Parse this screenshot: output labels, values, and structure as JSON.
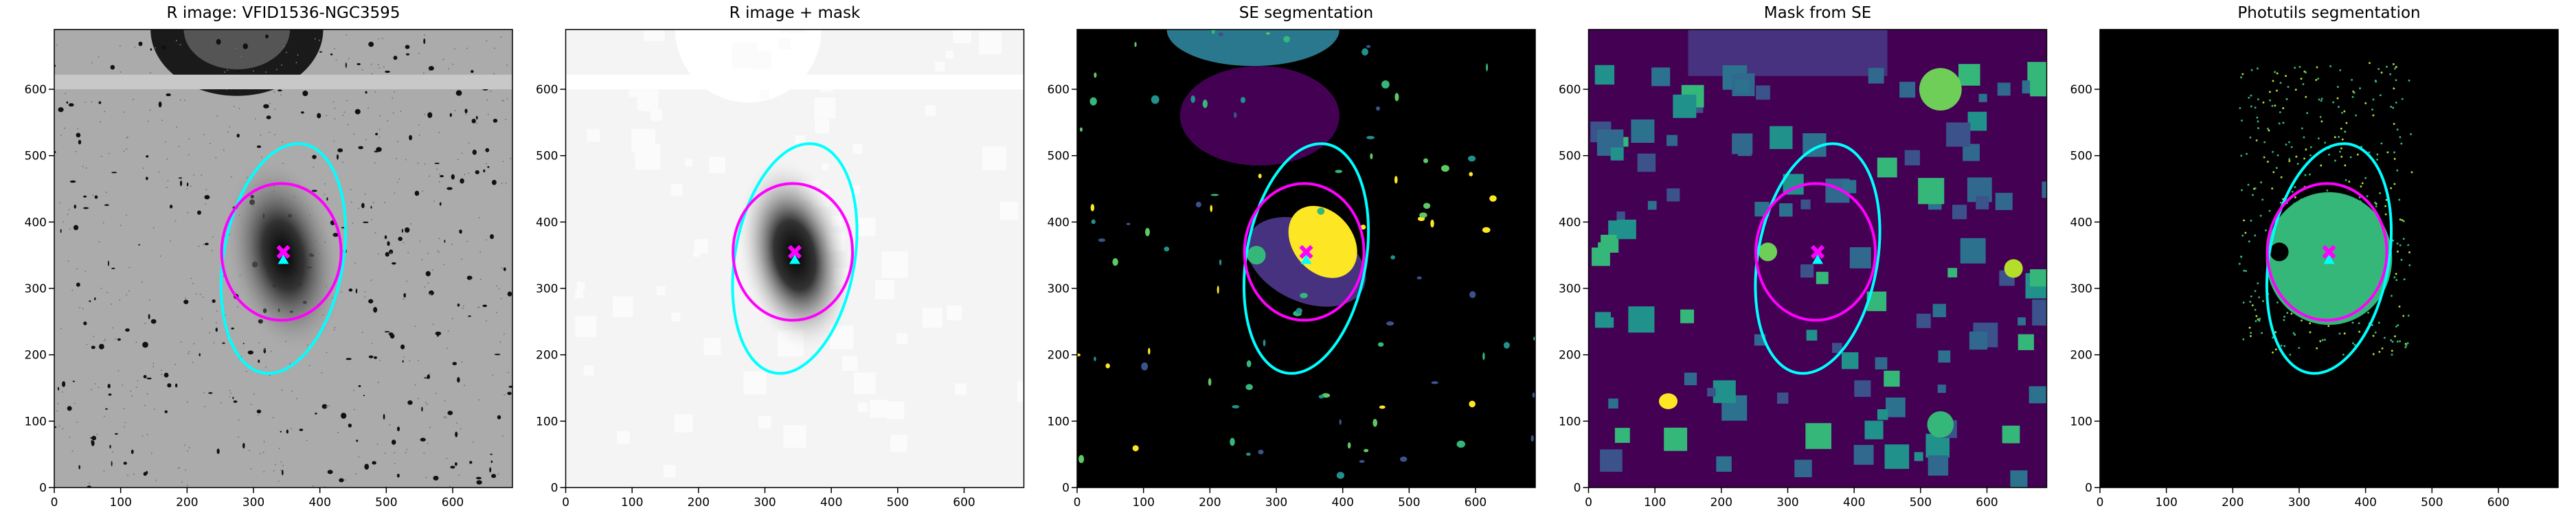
{
  "chart_data": [
    {
      "type": "image",
      "title": "R image: VFID1536-NGC3595",
      "background": "#ababab",
      "xlim": [
        0,
        690
      ],
      "ylim": [
        0,
        690
      ],
      "xticks": [
        0,
        100,
        200,
        300,
        400,
        500,
        600
      ],
      "yticks": [
        0,
        100,
        200,
        300,
        400,
        500,
        600
      ],
      "ellipses": [
        {
          "color": "#00ffff",
          "cx": 345,
          "cy": 345,
          "a": 175,
          "b": 90,
          "theta": 80
        },
        {
          "color": "#ff00ff",
          "cx": 342,
          "cy": 355,
          "a": 103,
          "b": 90,
          "theta": 90
        }
      ],
      "markers": [
        {
          "color": "#00ffff",
          "marker": "^",
          "x": 345,
          "y": 343
        },
        {
          "color": "#ff00ff",
          "marker": "x",
          "x": 345,
          "y": 355
        }
      ]
    },
    {
      "type": "image",
      "title": "R image + mask",
      "background": "#f4f4f4",
      "xlim": [
        0,
        690
      ],
      "ylim": [
        0,
        690
      ],
      "xticks": [
        0,
        100,
        200,
        300,
        400,
        500,
        600
      ],
      "yticks": [
        0,
        100,
        200,
        300,
        400,
        500,
        600
      ],
      "ellipses": [
        {
          "color": "#00ffff",
          "cx": 345,
          "cy": 345,
          "a": 175,
          "b": 90,
          "theta": 80
        },
        {
          "color": "#ff00ff",
          "cx": 342,
          "cy": 355,
          "a": 103,
          "b": 90,
          "theta": 90
        }
      ],
      "markers": [
        {
          "color": "#00ffff",
          "marker": "^",
          "x": 345,
          "y": 343
        },
        {
          "color": "#ff00ff",
          "marker": "x",
          "x": 345,
          "y": 355
        }
      ]
    },
    {
      "type": "image",
      "title": "SE segmentation",
      "background": "#000000",
      "xlim": [
        0,
        690
      ],
      "ylim": [
        0,
        690
      ],
      "xticks": [
        0,
        100,
        200,
        300,
        400,
        500,
        600
      ],
      "yticks": [
        0,
        100,
        200,
        300,
        400,
        500,
        600
      ],
      "ellipses": [
        {
          "color": "#00ffff",
          "cx": 345,
          "cy": 345,
          "a": 175,
          "b": 90,
          "theta": 80
        },
        {
          "color": "#ff00ff",
          "cx": 342,
          "cy": 355,
          "a": 103,
          "b": 90,
          "theta": 90
        }
      ],
      "markers": [
        {
          "color": "#00ffff",
          "marker": "^",
          "x": 345,
          "y": 343
        },
        {
          "color": "#ff00ff",
          "marker": "x",
          "x": 345,
          "y": 355
        }
      ]
    },
    {
      "type": "image",
      "title": "Mask from SE",
      "background": "#440154",
      "xlim": [
        0,
        690
      ],
      "ylim": [
        0,
        690
      ],
      "xticks": [
        0,
        100,
        200,
        300,
        400,
        500,
        600
      ],
      "yticks": [
        0,
        100,
        200,
        300,
        400,
        500,
        600
      ],
      "ellipses": [
        {
          "color": "#00ffff",
          "cx": 345,
          "cy": 345,
          "a": 175,
          "b": 90,
          "theta": 80
        },
        {
          "color": "#ff00ff",
          "cx": 342,
          "cy": 355,
          "a": 103,
          "b": 90,
          "theta": 90
        }
      ],
      "markers": [
        {
          "color": "#00ffff",
          "marker": "^",
          "x": 345,
          "y": 343
        },
        {
          "color": "#ff00ff",
          "marker": "x",
          "x": 345,
          "y": 355
        }
      ]
    },
    {
      "type": "image",
      "title": "Photutils segmentation",
      "background": "#000000",
      "xlim": [
        0,
        690
      ],
      "ylim": [
        0,
        690
      ],
      "xticks": [
        0,
        100,
        200,
        300,
        400,
        500,
        600
      ],
      "yticks": [
        0,
        100,
        200,
        300,
        400,
        500,
        600
      ],
      "ellipses": [
        {
          "color": "#00ffff",
          "cx": 345,
          "cy": 345,
          "a": 175,
          "b": 90,
          "theta": 80
        },
        {
          "color": "#ff00ff",
          "cx": 342,
          "cy": 355,
          "a": 103,
          "b": 90,
          "theta": 90
        }
      ],
      "markers": [
        {
          "color": "#00ffff",
          "marker": "^",
          "x": 345,
          "y": 343
        },
        {
          "color": "#ff00ff",
          "marker": "x",
          "x": 345,
          "y": 355
        }
      ]
    }
  ]
}
